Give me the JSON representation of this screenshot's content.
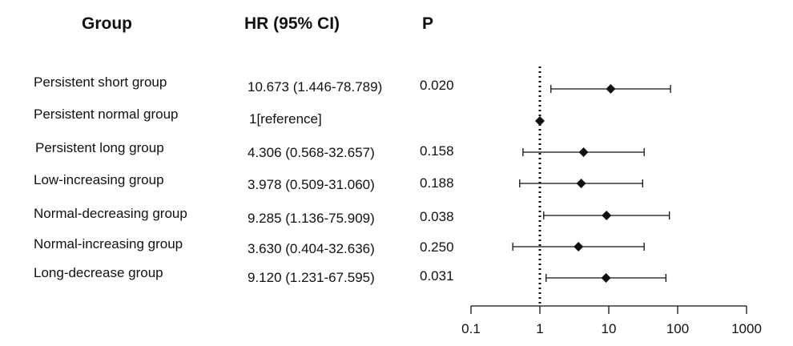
{
  "headers": {
    "group": "Group",
    "hr": "HR (95% CI)",
    "p": "P"
  },
  "rows": [
    {
      "group": "Persistent short group",
      "hr": "10.673 (1.446-78.789)",
      "p": "0.020"
    },
    {
      "group": "Persistent normal group",
      "hr": "1[reference]",
      "p": ""
    },
    {
      "group": "Persistent long group",
      "hr": "4.306 (0.568-32.657)",
      "p": "0.158"
    },
    {
      "group": "Low-increasing group",
      "hr": "3.978 (0.509-31.060)",
      "p": "0.188"
    },
    {
      "group": "Normal-decreasing group",
      "hr": "9.285 (1.136-75.909)",
      "p": "0.038"
    },
    {
      "group": "Normal-increasing group",
      "hr": "3.630 (0.404-32.636)",
      "p": "0.250"
    },
    {
      "group": "Long-decrease group",
      "hr": "9.120 (1.231-67.595)",
      "p": "0.031"
    }
  ],
  "chart_data": {
    "type": "forest",
    "x_scale": "log",
    "xlim": [
      0.1,
      1000
    ],
    "x_ticks": [
      0.1,
      1,
      10,
      100,
      1000
    ],
    "x_tick_labels": [
      "0.1",
      "1",
      "10",
      "100",
      "1000"
    ],
    "reference_line": 1,
    "points": [
      {
        "category": "Persistent short group",
        "hr": 10.673,
        "lower": 1.446,
        "upper": 78.789
      },
      {
        "category": "Persistent normal group",
        "hr": 1,
        "lower": null,
        "upper": null
      },
      {
        "category": "Persistent long group",
        "hr": 4.306,
        "lower": 0.568,
        "upper": 32.657
      },
      {
        "category": "Low-increasing group",
        "hr": 3.978,
        "lower": 0.509,
        "upper": 31.06
      },
      {
        "category": "Normal-decreasing group",
        "hr": 9.285,
        "lower": 1.136,
        "upper": 75.909
      },
      {
        "category": "Normal-increasing group",
        "hr": 3.63,
        "lower": 0.404,
        "upper": 32.636
      },
      {
        "category": "Long-decrease group",
        "hr": 9.12,
        "lower": 1.231,
        "upper": 67.595
      }
    ],
    "marker": "diamond",
    "colors": {
      "marks": "#111111"
    }
  }
}
